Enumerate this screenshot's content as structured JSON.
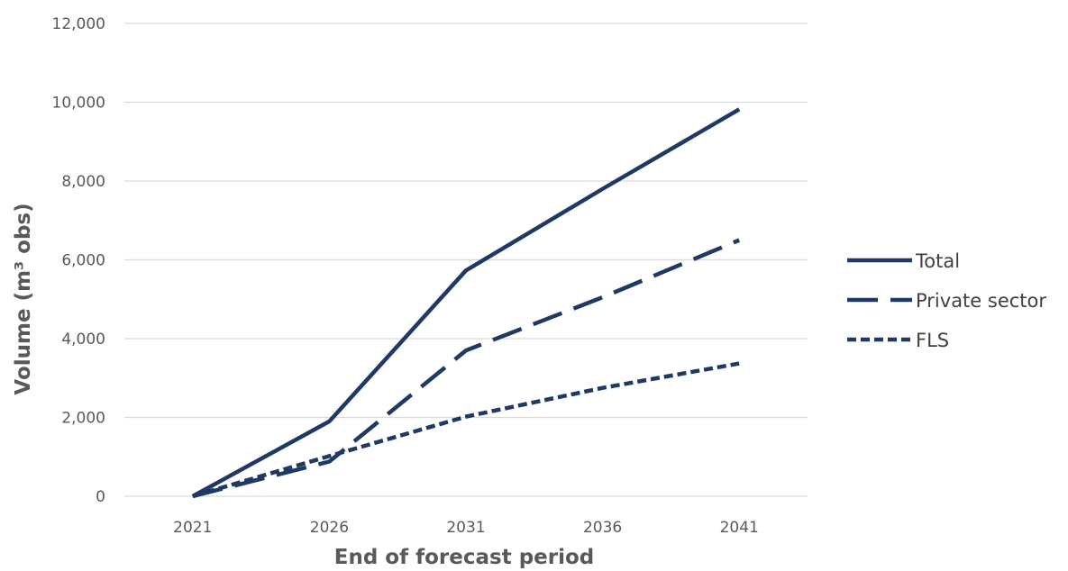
{
  "chart_data": {
    "type": "line",
    "title": "",
    "xlabel": "End of forecast period",
    "ylabel": "Volume (m³ obs)",
    "x": [
      "2021",
      "2026",
      "2031",
      "2036",
      "2041"
    ],
    "ylim": [
      0,
      12000
    ],
    "yticks": [
      0,
      2000,
      4000,
      6000,
      8000,
      10000,
      12000
    ],
    "ytick_labels": [
      "0",
      "2,000",
      "4,000",
      "6,000",
      "8,000",
      "10,000",
      "12,000"
    ],
    "grid": true,
    "legend_position": "right",
    "series": [
      {
        "name": "Total",
        "values": [
          0,
          1900,
          5730,
          7800,
          9820
        ],
        "color": "#1f3864",
        "line_style": "solid"
      },
      {
        "name": "Private sector",
        "values": [
          0,
          880,
          3700,
          5050,
          6500
        ],
        "color": "#1f3864",
        "line_style": "long-dash"
      },
      {
        "name": "FLS",
        "values": [
          0,
          1020,
          2020,
          2750,
          3370
        ],
        "color": "#1f3864",
        "line_style": "short-dash"
      }
    ]
  }
}
